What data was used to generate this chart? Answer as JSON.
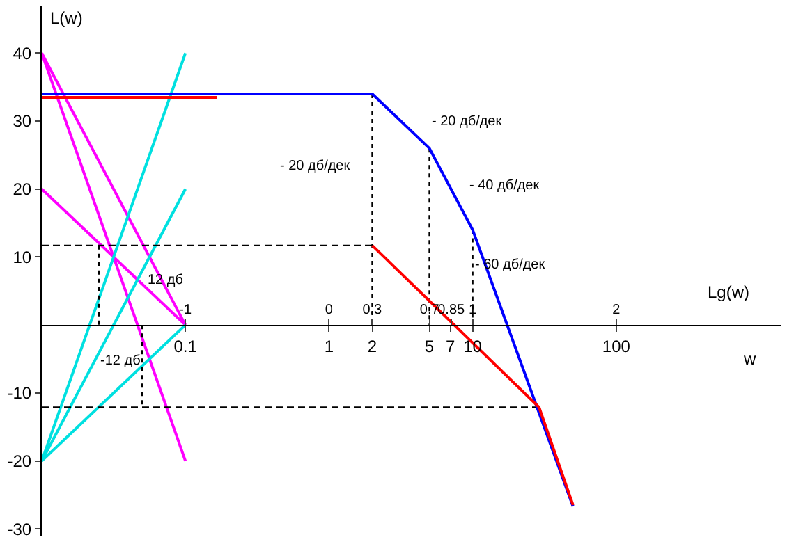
{
  "chart_data": {
    "type": "line",
    "xlabel": "w",
    "x2label": "Lg(w)",
    "ylabel": "L(w)",
    "log": "x",
    "xlim": [
      0.01,
      1413
    ],
    "ylim": [
      -31,
      47
    ],
    "xticks": [
      0.1,
      1,
      2,
      5,
      7,
      10,
      100
    ],
    "x2lim": [
      -2,
      3.15
    ],
    "x2ticks": [
      -1,
      0,
      0.3,
      0.7,
      0.85,
      1,
      2
    ],
    "yticks": [
      40,
      30,
      20,
      10,
      -10,
      -20,
      -30
    ],
    "legend": false,
    "marker": "none",
    "series": [
      {
        "color": "#ff00ff",
        "x": [
          0.01,
          0.1
        ],
        "values": [
          40,
          0
        ]
      },
      {
        "color": "#ff00ff",
        "x": [
          0.01,
          0.1
        ],
        "values": [
          40,
          -20
        ]
      },
      {
        "color": "#ff00ff",
        "x": [
          0.01,
          0.1
        ],
        "values": [
          20,
          0
        ]
      },
      {
        "color": "#00e0e0",
        "x": [
          0.01,
          0.1
        ],
        "values": [
          -20,
          40
        ]
      },
      {
        "color": "#00e0e0",
        "x": [
          0.01,
          0.1
        ],
        "values": [
          -20,
          20
        ]
      },
      {
        "color": "#00e0e0",
        "x": [
          0.01,
          0.1
        ],
        "values": [
          -20,
          0
        ]
      },
      {
        "color": "#000000",
        "line_style": "dashed",
        "x": [
          0.01,
          2
        ],
        "values": [
          11.7,
          11.7
        ]
      },
      {
        "color": "#000000",
        "line_style": "dashed",
        "x": [
          0.01,
          29
        ],
        "values": [
          -12.1,
          -12.1
        ]
      },
      {
        "color": "#000000",
        "line_style": "dotted",
        "x": [
          2,
          2
        ],
        "values": [
          34,
          0
        ]
      },
      {
        "color": "#000000",
        "line_style": "dotted",
        "x": [
          5,
          5
        ],
        "values": [
          26,
          0
        ]
      },
      {
        "color": "#000000",
        "line_style": "dotted",
        "x": [
          10,
          10
        ],
        "values": [
          14,
          0
        ]
      },
      {
        "color": "#000000",
        "line_style": "dotted",
        "x": [
          0.025,
          0.025
        ],
        "values": [
          11.7,
          0
        ]
      },
      {
        "color": "#000000",
        "line_style": "dotted",
        "x": [
          0.05,
          0.05
        ],
        "values": [
          0,
          -12.1
        ]
      },
      {
        "color": "#ff0000",
        "x": [
          0.01,
          0.166
        ],
        "values": [
          33.5,
          33.5
        ]
      },
      {
        "color": "#0000ff",
        "x": [
          0.01,
          2,
          5,
          10,
          50
        ],
        "values": [
          34,
          34,
          26,
          14,
          -26.7
        ]
      },
      {
        "color": "#ff0000",
        "x": [
          2,
          29,
          50
        ],
        "values": [
          11.7,
          -12.1,
          -26.5
        ]
      }
    ],
    "annotations": [
      "- 20 дб/дек",
      "- 20 дб/дек",
      "- 40 дб/дек",
      "- 60 дб/дек",
      "12 дб",
      "-12 дб"
    ]
  }
}
